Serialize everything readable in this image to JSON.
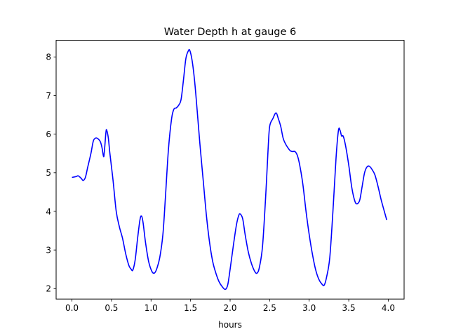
{
  "chart_data": {
    "type": "line",
    "title": "Water Depth h at gauge 6",
    "xlabel": "hours",
    "ylabel": "",
    "xlim": [
      -0.2,
      4.2
    ],
    "ylim": [
      1.73,
      8.43
    ],
    "xticks": [
      0.0,
      0.5,
      1.0,
      1.5,
      2.0,
      2.5,
      3.0,
      3.5,
      4.0
    ],
    "xtick_labels": [
      "0.0",
      "0.5",
      "1.0",
      "1.5",
      "2.0",
      "2.5",
      "3.0",
      "3.5",
      "4.0"
    ],
    "yticks": [
      2,
      3,
      4,
      5,
      6,
      7,
      8
    ],
    "ytick_labels": [
      "2",
      "3",
      "4",
      "5",
      "6",
      "7",
      "8"
    ],
    "grid": false,
    "series": [
      {
        "color": "#0000ff",
        "points": [
          [
            0.0,
            4.88
          ],
          [
            0.05,
            4.9
          ],
          [
            0.08,
            4.92
          ],
          [
            0.12,
            4.85
          ],
          [
            0.14,
            4.8
          ],
          [
            0.17,
            4.88
          ],
          [
            0.2,
            5.15
          ],
          [
            0.24,
            5.5
          ],
          [
            0.27,
            5.82
          ],
          [
            0.3,
            5.9
          ],
          [
            0.33,
            5.88
          ],
          [
            0.36,
            5.8
          ],
          [
            0.38,
            5.65
          ],
          [
            0.4,
            5.42
          ],
          [
            0.41,
            5.55
          ],
          [
            0.43,
            6.05
          ],
          [
            0.44,
            6.1
          ],
          [
            0.46,
            5.9
          ],
          [
            0.48,
            5.5
          ],
          [
            0.52,
            4.8
          ],
          [
            0.56,
            4.0
          ],
          [
            0.6,
            3.6
          ],
          [
            0.64,
            3.3
          ],
          [
            0.68,
            2.9
          ],
          [
            0.72,
            2.6
          ],
          [
            0.75,
            2.5
          ],
          [
            0.77,
            2.48
          ],
          [
            0.8,
            2.75
          ],
          [
            0.83,
            3.3
          ],
          [
            0.86,
            3.78
          ],
          [
            0.88,
            3.88
          ],
          [
            0.9,
            3.7
          ],
          [
            0.93,
            3.2
          ],
          [
            0.97,
            2.7
          ],
          [
            1.01,
            2.45
          ],
          [
            1.04,
            2.4
          ],
          [
            1.07,
            2.5
          ],
          [
            1.11,
            2.8
          ],
          [
            1.15,
            3.4
          ],
          [
            1.18,
            4.3
          ],
          [
            1.22,
            5.6
          ],
          [
            1.26,
            6.4
          ],
          [
            1.29,
            6.65
          ],
          [
            1.32,
            6.68
          ],
          [
            1.35,
            6.75
          ],
          [
            1.38,
            6.9
          ],
          [
            1.41,
            7.4
          ],
          [
            1.44,
            7.95
          ],
          [
            1.47,
            8.15
          ],
          [
            1.49,
            8.17
          ],
          [
            1.52,
            7.9
          ],
          [
            1.55,
            7.4
          ],
          [
            1.58,
            6.7
          ],
          [
            1.62,
            5.7
          ],
          [
            1.66,
            4.8
          ],
          [
            1.7,
            3.9
          ],
          [
            1.74,
            3.2
          ],
          [
            1.78,
            2.7
          ],
          [
            1.82,
            2.4
          ],
          [
            1.86,
            2.18
          ],
          [
            1.9,
            2.05
          ],
          [
            1.94,
            1.98
          ],
          [
            1.97,
            2.1
          ],
          [
            2.0,
            2.5
          ],
          [
            2.04,
            3.1
          ],
          [
            2.08,
            3.65
          ],
          [
            2.11,
            3.9
          ],
          [
            2.13,
            3.93
          ],
          [
            2.16,
            3.8
          ],
          [
            2.19,
            3.4
          ],
          [
            2.23,
            2.95
          ],
          [
            2.27,
            2.65
          ],
          [
            2.31,
            2.45
          ],
          [
            2.34,
            2.4
          ],
          [
            2.37,
            2.55
          ],
          [
            2.41,
            3.1
          ],
          [
            2.45,
            4.4
          ],
          [
            2.48,
            5.6
          ],
          [
            2.5,
            6.2
          ],
          [
            2.54,
            6.4
          ],
          [
            2.58,
            6.55
          ],
          [
            2.61,
            6.4
          ],
          [
            2.64,
            6.2
          ],
          [
            2.67,
            5.9
          ],
          [
            2.7,
            5.75
          ],
          [
            2.73,
            5.65
          ],
          [
            2.76,
            5.57
          ],
          [
            2.79,
            5.55
          ],
          [
            2.82,
            5.55
          ],
          [
            2.85,
            5.45
          ],
          [
            2.88,
            5.2
          ],
          [
            2.92,
            4.7
          ],
          [
            2.96,
            4.0
          ],
          [
            3.0,
            3.4
          ],
          [
            3.04,
            2.9
          ],
          [
            3.08,
            2.5
          ],
          [
            3.12,
            2.25
          ],
          [
            3.16,
            2.12
          ],
          [
            3.19,
            2.09
          ],
          [
            3.22,
            2.3
          ],
          [
            3.26,
            2.8
          ],
          [
            3.3,
            4.0
          ],
          [
            3.34,
            5.4
          ],
          [
            3.37,
            6.1
          ],
          [
            3.39,
            6.1
          ],
          [
            3.41,
            5.95
          ],
          [
            3.43,
            5.95
          ],
          [
            3.46,
            5.7
          ],
          [
            3.5,
            5.2
          ],
          [
            3.54,
            4.6
          ],
          [
            3.58,
            4.25
          ],
          [
            3.61,
            4.2
          ],
          [
            3.64,
            4.3
          ],
          [
            3.67,
            4.65
          ],
          [
            3.7,
            5.0
          ],
          [
            3.73,
            5.15
          ],
          [
            3.76,
            5.17
          ],
          [
            3.79,
            5.1
          ],
          [
            3.83,
            4.95
          ],
          [
            3.87,
            4.65
          ],
          [
            3.91,
            4.3
          ],
          [
            3.95,
            4.0
          ],
          [
            3.98,
            3.78
          ]
        ]
      }
    ]
  }
}
